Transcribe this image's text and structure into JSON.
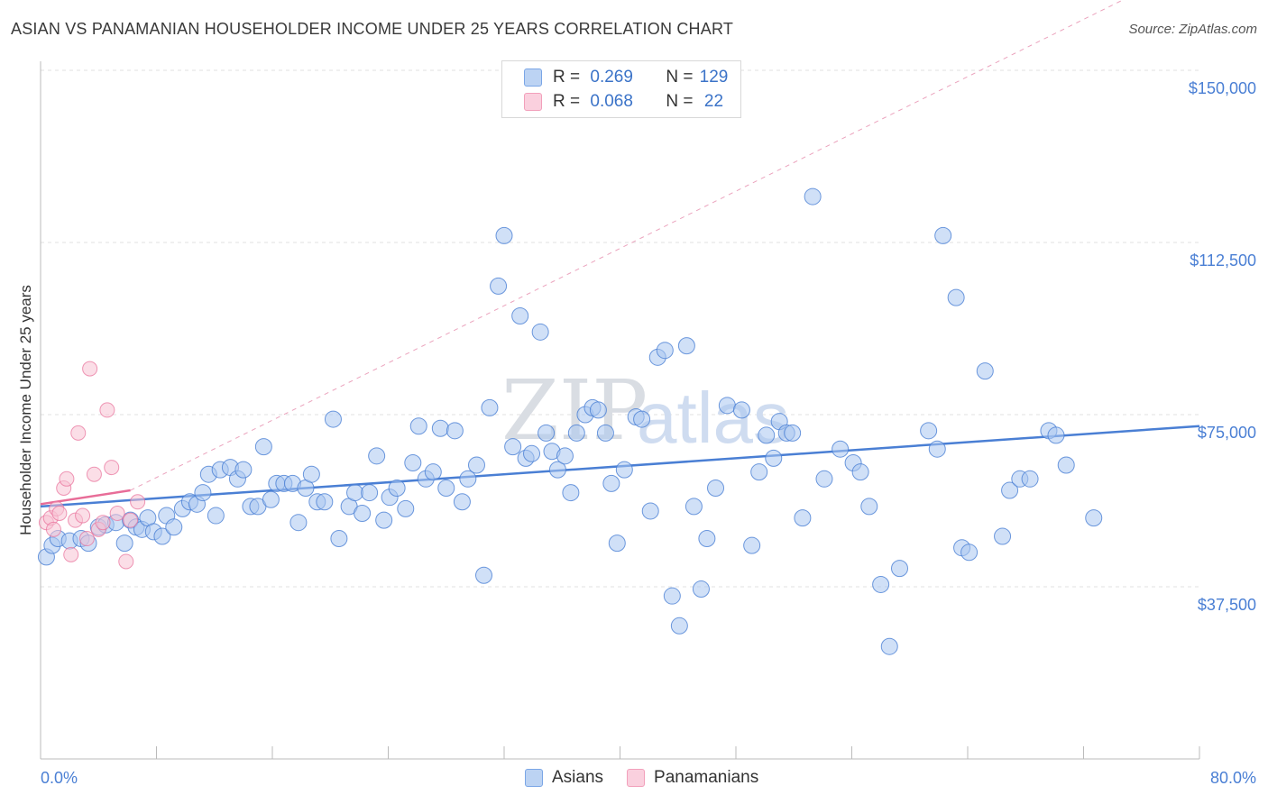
{
  "header": {
    "title": "ASIAN VS PANAMANIAN HOUSEHOLDER INCOME UNDER 25 YEARS CORRELATION CHART",
    "source": "Source: ZipAtlas.com"
  },
  "watermark": {
    "zip": "ZIP",
    "atlas": "atlas"
  },
  "legend": {
    "rows": [
      {
        "r_label": "R =",
        "r_value": "0.269",
        "n_label": "N =",
        "n_value": "129",
        "color": "#7aa6e6"
      },
      {
        "r_label": "R =",
        "r_value": "0.068",
        "n_label": "N =",
        "n_value": "22",
        "color": "#f2a0bb"
      }
    ]
  },
  "bottom_legend": {
    "asians": "Asians",
    "panamanians": "Panamanians"
  },
  "chart_data": {
    "type": "scatter",
    "ylabel": "Householder Income Under 25 years",
    "xlim": [
      0,
      80
    ],
    "ylim": [
      0,
      150000
    ],
    "x_tick_labels": [
      "0.0%",
      "80.0%"
    ],
    "y_ticks": [
      {
        "value": 150000,
        "label": "$150,000"
      },
      {
        "value": 112500,
        "label": "$112,500"
      },
      {
        "value": 75000,
        "label": "$75,000"
      },
      {
        "value": 37500,
        "label": "$37,500"
      }
    ],
    "grid": true,
    "colors": {
      "asians": "#4a7fd4",
      "asians_fill": "#a9c7f0",
      "panamanians": "#e86d98",
      "panamanians_fill": "#f7c3d4"
    },
    "series": [
      {
        "name": "Asians",
        "trend": {
          "x0": 0,
          "y0": 55000,
          "x1": 80,
          "y1": 72500
        },
        "points": [
          [
            0.4,
            44000
          ],
          [
            0.8,
            46500
          ],
          [
            1.2,
            48000
          ],
          [
            2.0,
            47500
          ],
          [
            2.8,
            48000
          ],
          [
            3.3,
            47000
          ],
          [
            4.0,
            50500
          ],
          [
            4.5,
            51000
          ],
          [
            5.2,
            51500
          ],
          [
            5.8,
            47000
          ],
          [
            6.2,
            52000
          ],
          [
            6.6,
            50500
          ],
          [
            7.0,
            50000
          ],
          [
            7.4,
            52500
          ],
          [
            7.8,
            49500
          ],
          [
            8.4,
            48500
          ],
          [
            8.7,
            53000
          ],
          [
            9.2,
            50500
          ],
          [
            9.8,
            54500
          ],
          [
            10.3,
            56000
          ],
          [
            10.8,
            55500
          ],
          [
            11.2,
            58000
          ],
          [
            11.6,
            62000
          ],
          [
            12.1,
            53000
          ],
          [
            12.4,
            63000
          ],
          [
            13.1,
            63500
          ],
          [
            13.6,
            61000
          ],
          [
            14.0,
            63000
          ],
          [
            14.5,
            55000
          ],
          [
            15.0,
            55000
          ],
          [
            15.4,
            68000
          ],
          [
            15.9,
            56500
          ],
          [
            16.3,
            60000
          ],
          [
            16.8,
            60000
          ],
          [
            17.4,
            60000
          ],
          [
            17.8,
            51500
          ],
          [
            18.3,
            59000
          ],
          [
            18.7,
            62000
          ],
          [
            19.1,
            56000
          ],
          [
            19.6,
            56000
          ],
          [
            20.2,
            74000
          ],
          [
            20.6,
            48000
          ],
          [
            21.3,
            55000
          ],
          [
            21.7,
            58000
          ],
          [
            22.2,
            53500
          ],
          [
            22.7,
            58000
          ],
          [
            23.2,
            66000
          ],
          [
            23.7,
            52000
          ],
          [
            24.1,
            57000
          ],
          [
            24.6,
            59000
          ],
          [
            25.2,
            54500
          ],
          [
            25.7,
            64500
          ],
          [
            26.1,
            72500
          ],
          [
            26.6,
            61000
          ],
          [
            27.1,
            62500
          ],
          [
            27.6,
            72000
          ],
          [
            28.0,
            59000
          ],
          [
            28.6,
            71500
          ],
          [
            29.1,
            56000
          ],
          [
            29.5,
            61000
          ],
          [
            30.1,
            64000
          ],
          [
            30.6,
            40000
          ],
          [
            31.0,
            76500
          ],
          [
            31.6,
            103000
          ],
          [
            32.0,
            114000
          ],
          [
            32.6,
            68000
          ],
          [
            33.1,
            96500
          ],
          [
            33.5,
            65500
          ],
          [
            33.9,
            66500
          ],
          [
            34.5,
            93000
          ],
          [
            34.9,
            71000
          ],
          [
            35.3,
            67000
          ],
          [
            35.7,
            63000
          ],
          [
            36.2,
            66000
          ],
          [
            36.6,
            58000
          ],
          [
            37.0,
            71000
          ],
          [
            37.6,
            75000
          ],
          [
            38.1,
            76500
          ],
          [
            38.5,
            76000
          ],
          [
            39.0,
            71000
          ],
          [
            39.4,
            60000
          ],
          [
            39.8,
            47000
          ],
          [
            40.3,
            63000
          ],
          [
            41.1,
            74500
          ],
          [
            41.5,
            74000
          ],
          [
            42.1,
            54000
          ],
          [
            42.6,
            87500
          ],
          [
            43.1,
            89000
          ],
          [
            43.6,
            35500
          ],
          [
            44.1,
            29000
          ],
          [
            44.6,
            90000
          ],
          [
            45.1,
            55000
          ],
          [
            45.6,
            37000
          ],
          [
            46.0,
            48000
          ],
          [
            46.6,
            59000
          ],
          [
            47.4,
            77000
          ],
          [
            48.4,
            76000
          ],
          [
            49.1,
            46500
          ],
          [
            49.6,
            62500
          ],
          [
            50.1,
            70500
          ],
          [
            50.6,
            65500
          ],
          [
            51.0,
            73500
          ],
          [
            51.5,
            71000
          ],
          [
            51.9,
            71000
          ],
          [
            52.6,
            52500
          ],
          [
            53.3,
            122500
          ],
          [
            54.1,
            61000
          ],
          [
            55.2,
            67500
          ],
          [
            56.1,
            64500
          ],
          [
            56.6,
            62500
          ],
          [
            57.2,
            55000
          ],
          [
            58.0,
            38000
          ],
          [
            58.6,
            24500
          ],
          [
            59.3,
            41500
          ],
          [
            61.3,
            71500
          ],
          [
            61.9,
            67500
          ],
          [
            62.3,
            114000
          ],
          [
            63.2,
            100500
          ],
          [
            63.6,
            46000
          ],
          [
            64.1,
            45000
          ],
          [
            65.2,
            84500
          ],
          [
            66.4,
            48500
          ],
          [
            66.9,
            58500
          ],
          [
            67.6,
            61000
          ],
          [
            68.3,
            61000
          ],
          [
            69.6,
            71500
          ],
          [
            70.1,
            70500
          ],
          [
            70.8,
            64000
          ],
          [
            72.7,
            52500
          ]
        ]
      },
      {
        "name": "Panamanians",
        "trend": {
          "x0": 0,
          "y0": 55500,
          "x1": 6.2,
          "y1": 58500
        },
        "points": [
          [
            0.4,
            51500
          ],
          [
            0.7,
            52500
          ],
          [
            0.9,
            50000
          ],
          [
            1.1,
            54500
          ],
          [
            1.3,
            53500
          ],
          [
            1.6,
            59000
          ],
          [
            1.8,
            61000
          ],
          [
            2.1,
            44500
          ],
          [
            2.4,
            52000
          ],
          [
            2.6,
            71000
          ],
          [
            2.9,
            53000
          ],
          [
            3.2,
            48000
          ],
          [
            3.4,
            85000
          ],
          [
            3.7,
            62000
          ],
          [
            4.0,
            50000
          ],
          [
            4.3,
            51500
          ],
          [
            4.6,
            76000
          ],
          [
            4.9,
            63500
          ],
          [
            5.3,
            53500
          ],
          [
            5.9,
            43000
          ],
          [
            6.2,
            52000
          ],
          [
            6.7,
            56000
          ]
        ]
      }
    ]
  }
}
